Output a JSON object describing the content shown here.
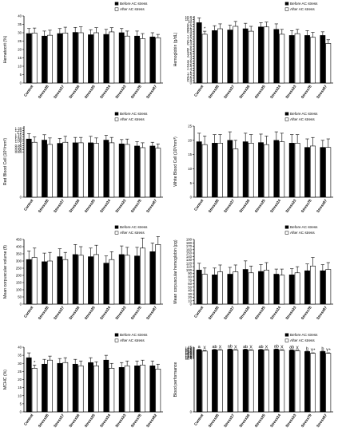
{
  "legend": {
    "before": "Before AC stress",
    "after": "After AC stress"
  },
  "chart_data": [
    {
      "type": "bar",
      "ylabel": "Hematocrit (%)",
      "ylim": [
        0,
        40
      ],
      "ticks": [
        0,
        5,
        10,
        15,
        20,
        25,
        30,
        35,
        40
      ],
      "categories": [
        "Control",
        "Stress28",
        "Stress27",
        "Stress26",
        "Stress25",
        "Stress24",
        "Stress23",
        "Stress78",
        "Stress87"
      ],
      "series": [
        {
          "name": "Before AC stress",
          "values": [
            29.5,
            28.0,
            29.5,
            30.2,
            28.8,
            29.0,
            30.0,
            28.0,
            27.5
          ],
          "errors": [
            3,
            3,
            3,
            3,
            3,
            3,
            2.5,
            3,
            2.5
          ]
        },
        {
          "name": "After AC stress",
          "values": [
            29.8,
            28.5,
            29.8,
            30.0,
            30.0,
            30.5,
            28.0,
            26.5,
            27.0
          ],
          "errors": [
            3,
            3,
            3.5,
            3.5,
            3,
            2.5,
            3,
            3,
            2
          ]
        }
      ],
      "annotations": [],
      "legend_position": "top-right"
    },
    {
      "type": "bar",
      "ylabel": "Hemoglobin (g/dL)",
      "ylim": [
        0,
        11
      ],
      "ticks": [
        0,
        0.4,
        0.8,
        1.2,
        1.6,
        2.0,
        2.4,
        2.8,
        3.2,
        3.6,
        4.0,
        4.4,
        4.8,
        5.2,
        5.6,
        6.0,
        6.4,
        6.8,
        7.2,
        7.6,
        8.0,
        8.4,
        8.8,
        9.2,
        9.6,
        10.0,
        10.4,
        10.8
      ],
      "categories": [
        "Control",
        "Stress28",
        "Stress27",
        "Stress26",
        "Stress25",
        "Stress24",
        "Stress23",
        "Stress78",
        "Stress87"
      ],
      "series": [
        {
          "name": "Before AC stress",
          "values": [
            9.9,
            8.6,
            8.7,
            8.9,
            9.2,
            8.8,
            7.8,
            7.8,
            7.8
          ],
          "errors": [
            0.8,
            0.8,
            0.8,
            0.9,
            0.7,
            0.9,
            0.8,
            0.8,
            0.6
          ]
        },
        {
          "name": "After AC stress",
          "values": [
            8.0,
            8.9,
            9.3,
            8.5,
            9.2,
            8.0,
            8.1,
            7.5,
            6.5
          ],
          "errors": [
            0.5,
            0.8,
            0.8,
            0.8,
            0.8,
            0.8,
            0.7,
            0.8,
            0.6
          ]
        }
      ],
      "annotations": [
        {
          "group": 0,
          "series": 1,
          "text": "*"
        }
      ],
      "legend_position": "top-right"
    },
    {
      "type": "bar",
      "ylabel": "Red Blood Cell (10⁶/mm³)",
      "ylim": [
        0,
        1.32
      ],
      "ticks": [
        0,
        0.84,
        0.88,
        0.92,
        0.96,
        1.0,
        1.04,
        1.08,
        1.12,
        1.16,
        1.2,
        1.24,
        1.28
      ],
      "categories": [
        "Control",
        "Stress28",
        "Stress27",
        "Stress26",
        "Stress25",
        "Stress24",
        "Stress23",
        "Stress78",
        "Stress87"
      ],
      "series": [
        {
          "name": "Before AC stress",
          "values": [
            1.08,
            1.06,
            1.0,
            1.01,
            1.01,
            1.06,
            0.99,
            0.95,
            0.95
          ],
          "errors": [
            0.1,
            0.1,
            0.09,
            0.1,
            0.12,
            0.09,
            0.08,
            0.08,
            0.07
          ]
        },
        {
          "name": "After AC stress",
          "values": [
            1.02,
            0.98,
            1.02,
            1.01,
            1.0,
            1.01,
            0.98,
            0.92,
            0.91
          ],
          "errors": [
            0.1,
            0.12,
            0.11,
            0.1,
            0.1,
            0.1,
            0.1,
            0.09,
            0.08
          ]
        }
      ],
      "annotations": [],
      "legend_position": "top-right"
    },
    {
      "type": "bar",
      "ylabel": "White Blood Cell (10³/mm³)",
      "ylim": [
        0,
        25
      ],
      "ticks": [
        0,
        5,
        10,
        15,
        20,
        25
      ],
      "categories": [
        "Control",
        "Stress28",
        "Stress27",
        "Stress26",
        "Stress25",
        "Stress24",
        "Stress23",
        "Stress78",
        "Stress87"
      ],
      "series": [
        {
          "name": "Before AC stress",
          "values": [
            19.5,
            19.0,
            20.0,
            19.5,
            19.2,
            20.0,
            19.0,
            17.5,
            17.5
          ],
          "errors": [
            3,
            3,
            3,
            3,
            3,
            3,
            3,
            3,
            2.5
          ]
        },
        {
          "name": "After AC stress",
          "values": [
            18.5,
            19.0,
            17.0,
            19.0,
            18.5,
            19.5,
            19.0,
            18.0,
            17.5
          ],
          "errors": [
            3,
            3,
            3,
            3,
            3,
            3,
            3,
            3,
            3
          ]
        }
      ],
      "annotations": [],
      "legend_position": "top-right"
    },
    {
      "type": "bar",
      "ylabel": "Mean corpuscular volume (fl)",
      "ylim": [
        0,
        450
      ],
      "ticks": [
        0,
        50,
        100,
        150,
        200,
        250,
        300,
        350,
        400,
        450
      ],
      "categories": [
        "Control",
        "Stress28",
        "Stress27",
        "Stress26",
        "Stress25",
        "Stress24",
        "Stress23",
        "Stress78",
        "Stress87"
      ],
      "series": [
        {
          "name": "Before AC stress",
          "values": [
            310,
            295,
            330,
            345,
            330,
            285,
            345,
            335,
            365
          ],
          "errors": [
            60,
            60,
            55,
            70,
            60,
            50,
            60,
            60,
            60
          ]
        },
        {
          "name": "After AC stress",
          "values": [
            325,
            300,
            310,
            340,
            345,
            310,
            340,
            390,
            415
          ],
          "errors": [
            65,
            60,
            50,
            60,
            65,
            55,
            55,
            70,
            55
          ]
        }
      ],
      "annotations": [],
      "legend_position": "top-right"
    },
    {
      "type": "bar",
      "ylabel": "Mean corpuscular hemoglobin (pg)",
      "ylim": [
        0,
        190
      ],
      "ticks": [
        0,
        10,
        20,
        30,
        40,
        50,
        60,
        70,
        80,
        90,
        100,
        110,
        120,
        130,
        140,
        150,
        160,
        170,
        180,
        190
      ],
      "categories": [
        "Control",
        "Stress28",
        "Stress27",
        "Stress26",
        "Stress25",
        "Stress24",
        "Stress23",
        "Stress78",
        "Stress87"
      ],
      "series": [
        {
          "name": "Before AC stress",
          "values": [
            100,
            86,
            88,
            102,
            96,
            88,
            86,
            98,
            98
          ],
          "errors": [
            20,
            20,
            20,
            25,
            20,
            15,
            18,
            20,
            18
          ]
        },
        {
          "name": "After AC stress",
          "values": [
            88,
            95,
            95,
            92,
            100,
            85,
            92,
            112,
            102
          ],
          "errors": [
            18,
            20,
            20,
            20,
            22,
            18,
            18,
            25,
            20
          ]
        }
      ],
      "annotations": [],
      "legend_position": "top-right"
    },
    {
      "type": "bar",
      "ylabel": "MCHC (%)",
      "ylim": [
        0,
        40
      ],
      "ticks": [
        0,
        5,
        10,
        15,
        20,
        25,
        30,
        35,
        40
      ],
      "categories": [
        "Control",
        "Stress28",
        "Stress27",
        "Stress26",
        "Stress25",
        "Stress24",
        "Stress23",
        "Stress78",
        "Stress82"
      ],
      "series": [
        {
          "name": "Before AC stress",
          "values": [
            33.5,
            29.5,
            30.0,
            29.5,
            30.5,
            32.0,
            27.5,
            28.5,
            28.5
          ],
          "errors": [
            3,
            3,
            3,
            3,
            3,
            3,
            3,
            3,
            3
          ]
        },
        {
          "name": "After AC stress",
          "values": [
            27.0,
            32.0,
            30.5,
            28.5,
            28.5,
            27.0,
            28.5,
            29.0,
            26.5
          ],
          "errors": [
            2,
            2.5,
            3,
            3,
            2.5,
            3,
            3,
            3,
            3
          ]
        }
      ],
      "annotations": [
        {
          "group": 0,
          "series": 1,
          "text": "*"
        }
      ],
      "legend_position": "top-right"
    },
    {
      "type": "bar",
      "ylabel": "Blood performance",
      "ylim": [
        0,
        15
      ],
      "ticks": [
        0,
        12.4,
        12.6,
        12.8,
        13.0,
        13.2,
        13.4,
        13.6,
        13.8,
        14.0,
        14.2,
        14.4,
        14.6,
        14.8,
        15.0
      ],
      "categories": [
        "Control",
        "Stress28",
        "Stress27",
        "Stress26",
        "Stress25",
        "Stress24",
        "Stress23",
        "Stress79",
        "Stress87"
      ],
      "series": [
        {
          "name": "Before AC stress",
          "values": [
            14.4,
            14.4,
            14.5,
            14.45,
            14.4,
            14.5,
            14.3,
            14.0,
            14.0
          ],
          "errors": [
            0.12,
            0.12,
            0.1,
            0.12,
            0.12,
            0.1,
            0.12,
            0.1,
            0.1
          ]
        },
        {
          "name": "After AC stress",
          "values": [
            14.1,
            14.35,
            14.35,
            14.3,
            14.35,
            14.3,
            14.2,
            13.6,
            13.6
          ],
          "errors": [
            0.12,
            0.1,
            0.1,
            0.1,
            0.1,
            0.1,
            0.1,
            0.1,
            0.1
          ]
        }
      ],
      "annotations": [
        {
          "group": 0,
          "series": 0,
          "text": "a"
        },
        {
          "group": 0,
          "series": 1,
          "text": "X"
        },
        {
          "group": 1,
          "series": 0,
          "text": "ab"
        },
        {
          "group": 1,
          "series": 1,
          "text": "X"
        },
        {
          "group": 2,
          "series": 0,
          "text": "ab"
        },
        {
          "group": 2,
          "series": 1,
          "text": "X"
        },
        {
          "group": 3,
          "series": 0,
          "text": "ab"
        },
        {
          "group": 3,
          "series": 1,
          "text": "X"
        },
        {
          "group": 4,
          "series": 0,
          "text": "ab"
        },
        {
          "group": 4,
          "series": 1,
          "text": "X"
        },
        {
          "group": 5,
          "series": 0,
          "text": "ab"
        },
        {
          "group": 5,
          "series": 1,
          "text": "X"
        },
        {
          "group": 6,
          "series": 0,
          "text": "ab"
        },
        {
          "group": 6,
          "series": 1,
          "text": "X"
        },
        {
          "group": 7,
          "series": 0,
          "text": "b"
        },
        {
          "group": 7,
          "series": 1,
          "text": "Y*"
        },
        {
          "group": 8,
          "series": 0,
          "text": "b"
        },
        {
          "group": 8,
          "series": 1,
          "text": "Y*"
        }
      ],
      "legend_position": "top-right"
    }
  ]
}
